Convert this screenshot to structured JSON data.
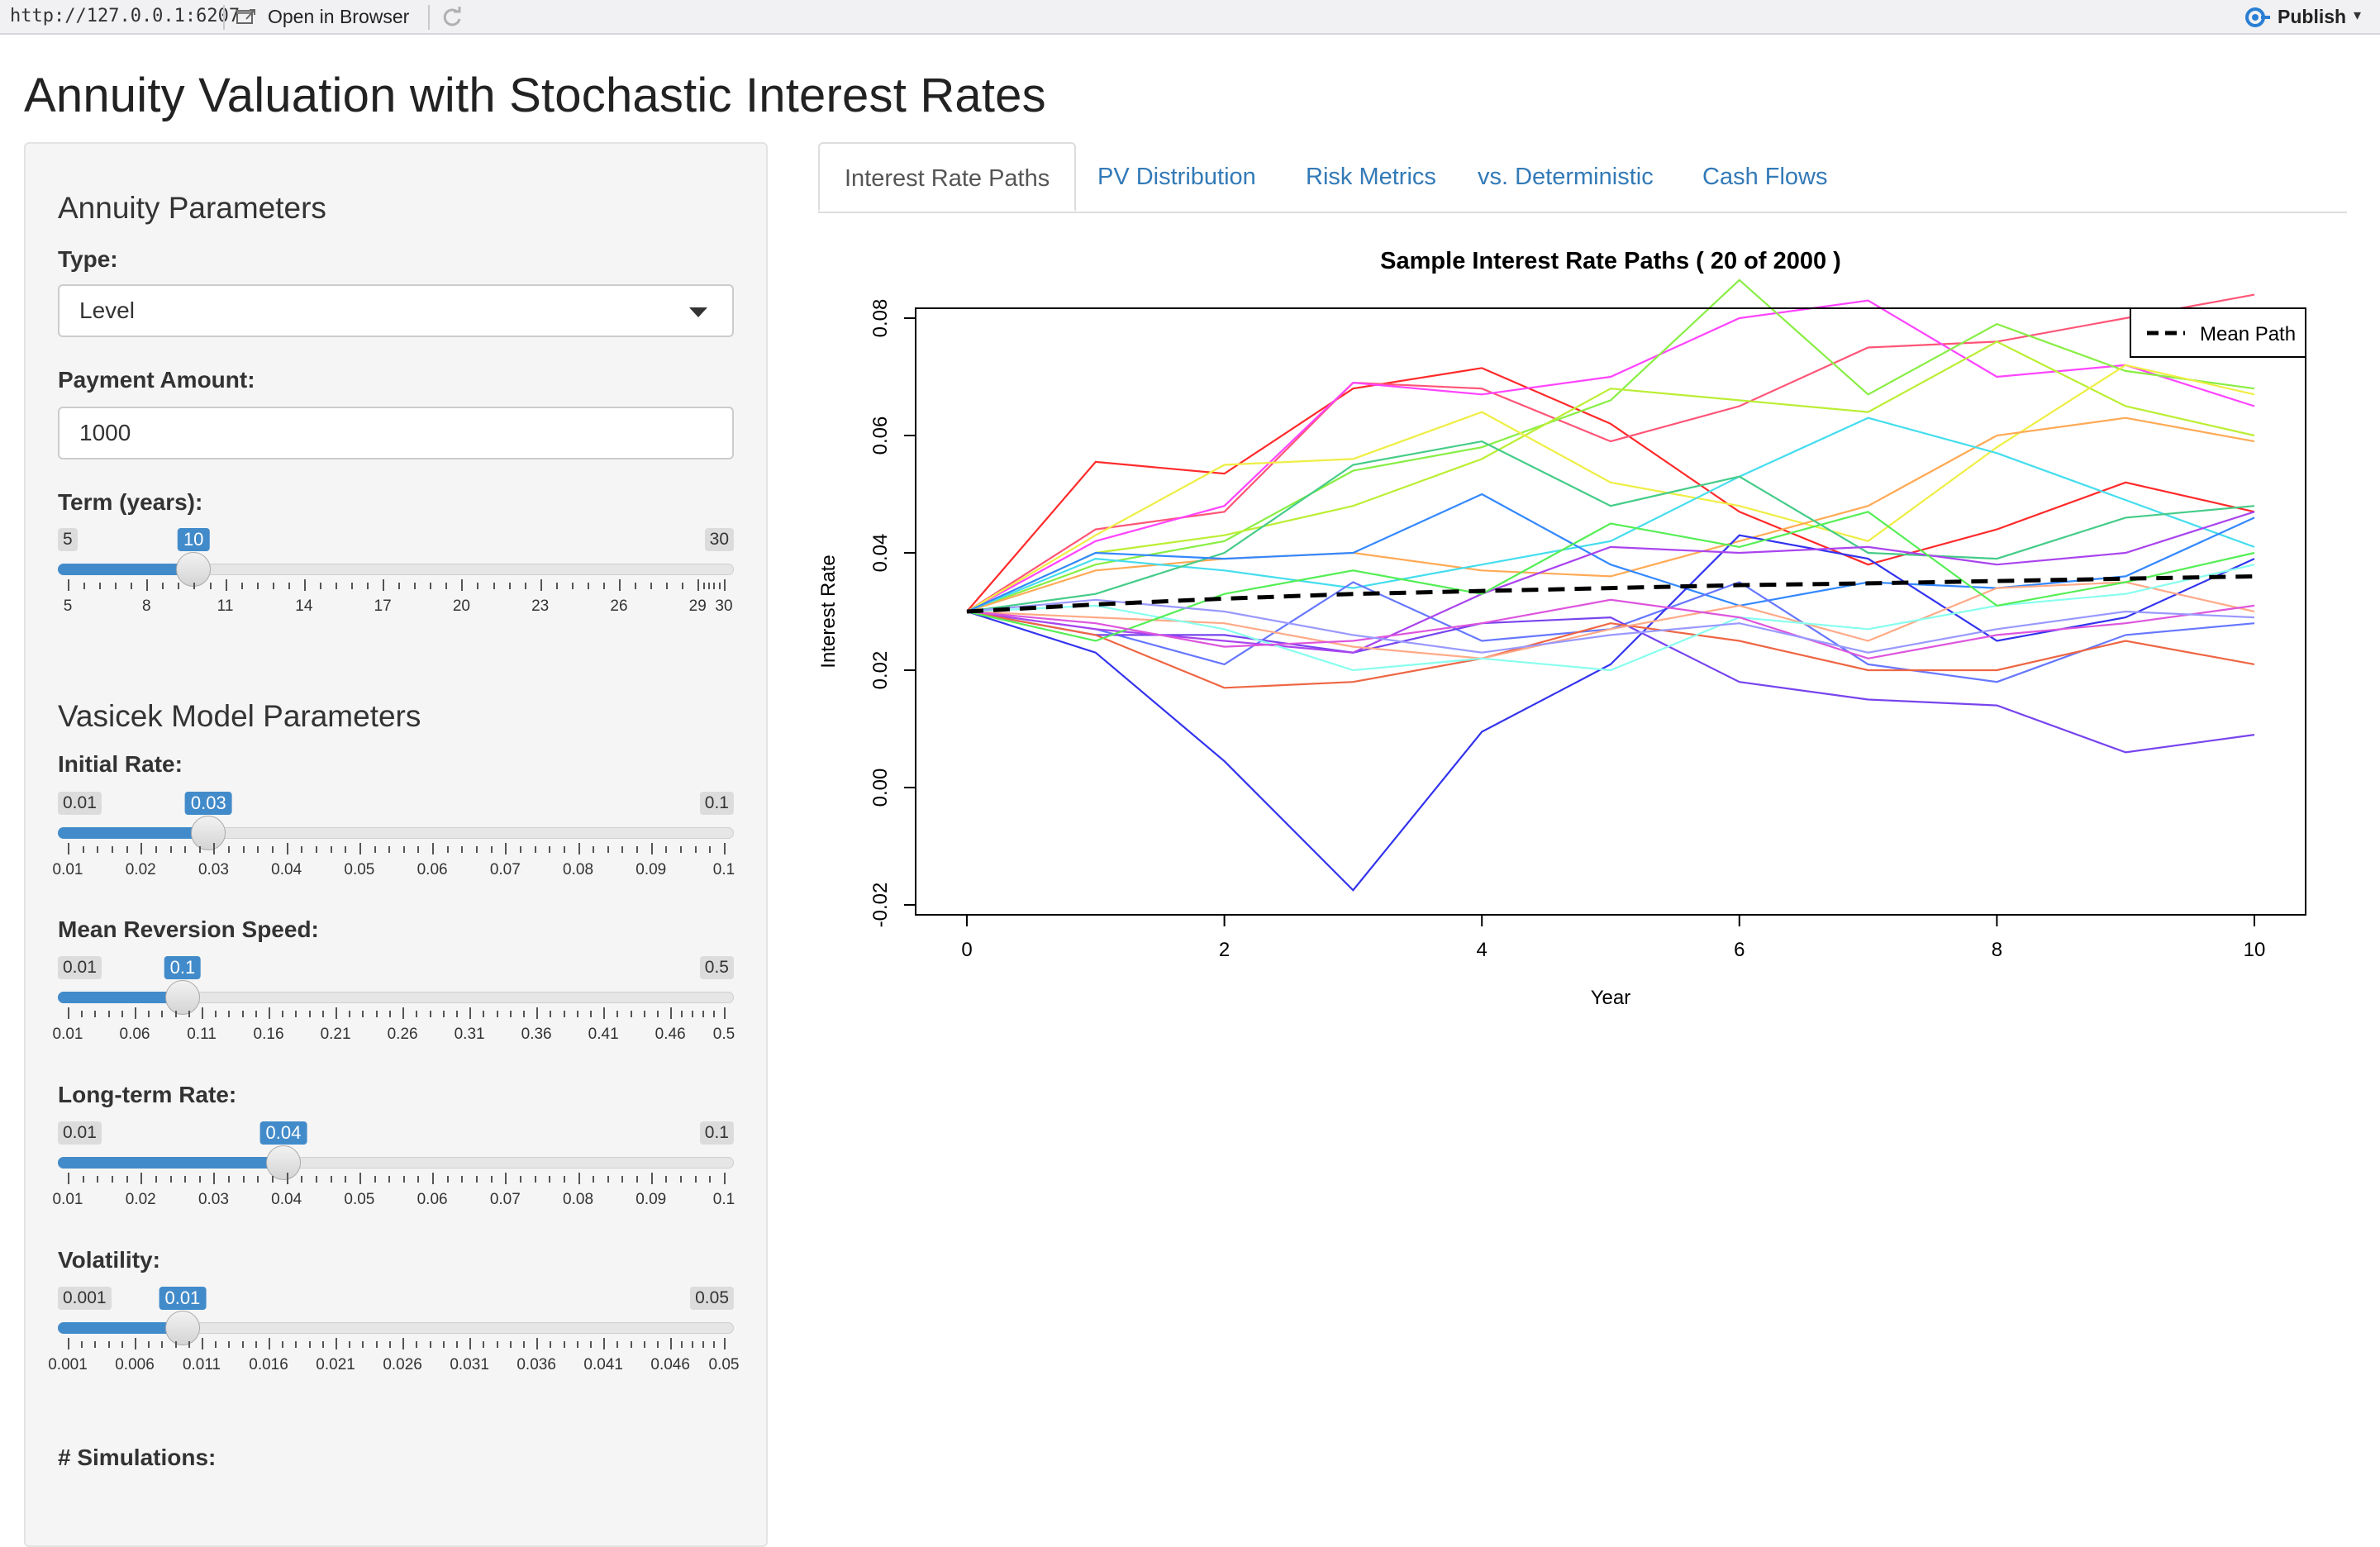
{
  "topbar": {
    "url": "http://127.0.0.1:6207",
    "open_in_browser": "Open in Browser",
    "publish": "Publish",
    "icons": [
      "open-window-icon",
      "refresh-icon",
      "publish-icon",
      "chevron-down-icon"
    ]
  },
  "page_title": "Annuity Valuation with Stochastic Interest Rates",
  "sidebar": {
    "annuity_section": "Annuity Parameters",
    "type_label": "Type:",
    "type_value": "Level",
    "payment_label": "Payment Amount:",
    "payment_value": "1000",
    "term": {
      "label": "Term (years):",
      "min": "5",
      "max": "30",
      "value": "10",
      "value_frac": 0.2,
      "tick_labels": [
        "5",
        "8",
        "11",
        "14",
        "17",
        "20",
        "23",
        "26",
        "29",
        "30"
      ]
    },
    "vasicek_section": "Vasicek Model Parameters",
    "initial_rate": {
      "label": "Initial Rate:",
      "min": "0.01",
      "max": "0.1",
      "value": "0.03",
      "value_frac": 0.2222,
      "tick_labels": [
        "0.01",
        "0.02",
        "0.03",
        "0.04",
        "0.05",
        "0.06",
        "0.07",
        "0.08",
        "0.09",
        "0.1"
      ]
    },
    "mean_reversion": {
      "label": "Mean Reversion Speed:",
      "min": "0.01",
      "max": "0.5",
      "value": "0.1",
      "value_frac": 0.1837,
      "tick_labels": [
        "0.01",
        "0.06",
        "0.11",
        "0.16",
        "0.21",
        "0.26",
        "0.31",
        "0.36",
        "0.41",
        "0.46",
        "0.5"
      ]
    },
    "long_term_rate": {
      "label": "Long-term Rate:",
      "min": "0.01",
      "max": "0.1",
      "value": "0.04",
      "value_frac": 0.3333,
      "tick_labels": [
        "0.01",
        "0.02",
        "0.03",
        "0.04",
        "0.05",
        "0.06",
        "0.07",
        "0.08",
        "0.09",
        "0.1"
      ]
    },
    "volatility": {
      "label": "Volatility:",
      "min": "0.001",
      "max": "0.05",
      "value": "0.01",
      "value_frac": 0.1837,
      "tick_labels": [
        "0.001",
        "0.006",
        "0.011",
        "0.016",
        "0.021",
        "0.026",
        "0.031",
        "0.036",
        "0.041",
        "0.046",
        "0.05"
      ]
    },
    "simulations_label": "# Simulations:"
  },
  "tabs": [
    {
      "label": "Interest Rate Paths",
      "active": true
    },
    {
      "label": "PV Distribution",
      "active": false
    },
    {
      "label": "Risk Metrics",
      "active": false
    },
    {
      "label": "vs. Deterministic",
      "active": false
    },
    {
      "label": "Cash Flows",
      "active": false
    }
  ],
  "chart_data": {
    "type": "line",
    "title": "Sample Interest Rate Paths ( 20 of 2000 )",
    "xlabel": "Year",
    "ylabel": "Interest Rate",
    "xlim": [
      0,
      10
    ],
    "ylim": [
      -0.02,
      0.08
    ],
    "x_ticks": [
      "0",
      "2",
      "4",
      "6",
      "8",
      "10"
    ],
    "y_ticks": [
      "-0.02",
      "0.00",
      "0.02",
      "0.04",
      "0.06",
      "0.08"
    ],
    "legend": {
      "position": "top-right",
      "entries": [
        "Mean Path"
      ]
    },
    "x": [
      0,
      1,
      2,
      3,
      4,
      5,
      6,
      7,
      8,
      9,
      10
    ],
    "mean_path": {
      "name": "Mean Path",
      "color": "#000000",
      "values": [
        0.03,
        0.0312,
        0.0322,
        0.033,
        0.0335,
        0.034,
        0.0345,
        0.0348,
        0.0352,
        0.0356,
        0.036
      ]
    },
    "series": [
      {
        "color": "#ff2a2a",
        "values": [
          0.03,
          0.0555,
          0.0535,
          0.068,
          0.0715,
          0.062,
          0.047,
          0.038,
          0.044,
          0.052,
          0.047
        ]
      },
      {
        "color": "#ff5577",
        "values": [
          0.03,
          0.044,
          0.047,
          0.069,
          0.068,
          0.059,
          0.065,
          0.075,
          0.076,
          0.08,
          0.084
        ]
      },
      {
        "color": "#ff44ff",
        "values": [
          0.03,
          0.042,
          0.048,
          0.069,
          0.067,
          0.07,
          0.08,
          0.083,
          0.07,
          0.072,
          0.065
        ]
      },
      {
        "color": "#88ee44",
        "values": [
          0.03,
          0.038,
          0.042,
          0.054,
          0.058,
          0.066,
          0.0865,
          0.067,
          0.079,
          0.071,
          0.068
        ]
      },
      {
        "color": "#bbee33",
        "values": [
          0.03,
          0.04,
          0.043,
          0.048,
          0.056,
          0.068,
          0.066,
          0.064,
          0.076,
          0.065,
          0.06
        ]
      },
      {
        "color": "#eeee44",
        "values": [
          0.03,
          0.043,
          0.055,
          0.056,
          0.064,
          0.052,
          0.048,
          0.042,
          0.058,
          0.072,
          0.067
        ]
      },
      {
        "color": "#ffaa55",
        "values": [
          0.03,
          0.037,
          0.039,
          0.04,
          0.037,
          0.036,
          0.042,
          0.048,
          0.06,
          0.063,
          0.059
        ]
      },
      {
        "color": "#44ddee",
        "values": [
          0.03,
          0.039,
          0.037,
          0.034,
          0.038,
          0.042,
          0.053,
          0.063,
          0.057,
          0.049,
          0.041
        ]
      },
      {
        "color": "#44cc88",
        "values": [
          0.03,
          0.033,
          0.04,
          0.055,
          0.059,
          0.048,
          0.053,
          0.04,
          0.039,
          0.046,
          0.048
        ]
      },
      {
        "color": "#3388ff",
        "values": [
          0.03,
          0.04,
          0.039,
          0.04,
          0.05,
          0.038,
          0.031,
          0.035,
          0.034,
          0.036,
          0.046
        ]
      },
      {
        "color": "#6677ff",
        "values": [
          0.03,
          0.027,
          0.021,
          0.035,
          0.025,
          0.027,
          0.035,
          0.021,
          0.018,
          0.026,
          0.028
        ]
      },
      {
        "color": "#3333ee",
        "values": [
          0.03,
          0.023,
          0.0045,
          -0.0175,
          0.0095,
          0.021,
          0.043,
          0.039,
          0.025,
          0.029,
          0.039
        ]
      },
      {
        "color": "#7744ee",
        "values": [
          0.03,
          0.026,
          0.026,
          0.023,
          0.028,
          0.029,
          0.018,
          0.015,
          0.014,
          0.006,
          0.009
        ]
      },
      {
        "color": "#aa44ee",
        "values": [
          0.03,
          0.027,
          0.025,
          0.023,
          0.033,
          0.041,
          0.04,
          0.041,
          0.038,
          0.04,
          0.047
        ]
      },
      {
        "color": "#ee6644",
        "values": [
          0.03,
          0.026,
          0.017,
          0.018,
          0.022,
          0.028,
          0.025,
          0.02,
          0.02,
          0.025,
          0.021
        ]
      },
      {
        "color": "#ffaa88",
        "values": [
          0.03,
          0.029,
          0.028,
          0.024,
          0.022,
          0.027,
          0.031,
          0.025,
          0.034,
          0.035,
          0.03
        ]
      },
      {
        "color": "#88ffee",
        "values": [
          0.03,
          0.031,
          0.027,
          0.02,
          0.022,
          0.02,
          0.029,
          0.027,
          0.031,
          0.033,
          0.038
        ]
      },
      {
        "color": "#55ee55",
        "values": [
          0.03,
          0.025,
          0.033,
          0.037,
          0.033,
          0.045,
          0.041,
          0.047,
          0.031,
          0.035,
          0.04
        ]
      },
      {
        "color": "#dd55dd",
        "values": [
          0.03,
          0.028,
          0.024,
          0.025,
          0.028,
          0.032,
          0.029,
          0.022,
          0.026,
          0.028,
          0.031
        ]
      },
      {
        "color": "#9999ff",
        "values": [
          0.03,
          0.032,
          0.03,
          0.026,
          0.023,
          0.026,
          0.028,
          0.023,
          0.027,
          0.03,
          0.029
        ]
      }
    ]
  }
}
